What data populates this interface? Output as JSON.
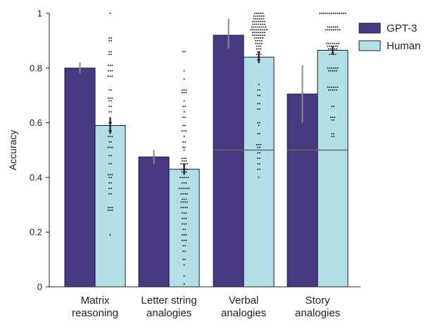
{
  "chart_data": {
    "type": "bar",
    "ylabel": "Accuracy",
    "ylim": [
      0,
      1
    ],
    "yticks": [
      0,
      0.2,
      0.4,
      0.6,
      0.8,
      1
    ],
    "ytick_labels": [
      "0",
      "0.2",
      "0.4",
      "0.6",
      "0.8",
      "1"
    ],
    "categories": [
      [
        "Matrix",
        "reasoning"
      ],
      [
        "Letter string",
        "analogies"
      ],
      [
        "Verbal",
        "analogies"
      ],
      [
        "Story",
        "analogies"
      ]
    ],
    "series": [
      {
        "name": "GPT-3",
        "color": "#473a80",
        "values": [
          0.8,
          0.475,
          0.92,
          0.705
        ],
        "errors": [
          [
            0.78,
            0.82
          ],
          [
            0.45,
            0.5
          ],
          [
            0.87,
            0.98
          ],
          [
            0.6,
            0.81
          ]
        ]
      },
      {
        "name": "Human",
        "color": "#b3e0e6",
        "values": [
          0.59,
          0.43,
          0.84,
          0.865
        ],
        "errors": [
          [
            0.56,
            0.62
          ],
          [
            0.41,
            0.45
          ],
          [
            0.82,
            0.86
          ],
          [
            0.85,
            0.88
          ]
        ]
      }
    ],
    "chance_lines": [
      null,
      null,
      0.5,
      0.5
    ],
    "human_points": [
      [
        [
          1.0,
          1
        ],
        [
          0.91,
          2
        ],
        [
          0.9,
          2
        ],
        [
          0.86,
          2
        ],
        [
          0.85,
          2
        ],
        [
          0.81,
          3
        ],
        [
          0.79,
          3
        ],
        [
          0.77,
          3
        ],
        [
          0.72,
          2
        ],
        [
          0.69,
          3
        ],
        [
          0.68,
          2
        ],
        [
          0.66,
          2
        ],
        [
          0.64,
          2
        ],
        [
          0.6,
          2
        ],
        [
          0.57,
          2
        ],
        [
          0.55,
          3
        ],
        [
          0.53,
          2
        ],
        [
          0.51,
          3
        ],
        [
          0.48,
          2
        ],
        [
          0.45,
          2
        ],
        [
          0.41,
          3
        ],
        [
          0.4,
          2
        ],
        [
          0.38,
          2
        ],
        [
          0.36,
          2
        ],
        [
          0.34,
          2
        ],
        [
          0.29,
          3
        ],
        [
          0.28,
          3
        ],
        [
          0.19,
          1
        ]
      ],
      [
        [
          0.86,
          2
        ],
        [
          0.79,
          1
        ],
        [
          0.76,
          1
        ],
        [
          0.72,
          3
        ],
        [
          0.71,
          3
        ],
        [
          0.68,
          1
        ],
        [
          0.66,
          2
        ],
        [
          0.64,
          1
        ],
        [
          0.62,
          2
        ],
        [
          0.59,
          2
        ],
        [
          0.57,
          3
        ],
        [
          0.55,
          1
        ],
        [
          0.53,
          2
        ],
        [
          0.51,
          2
        ],
        [
          0.5,
          1
        ],
        [
          0.47,
          3
        ],
        [
          0.46,
          3
        ],
        [
          0.45,
          4
        ],
        [
          0.43,
          4
        ],
        [
          0.42,
          3
        ],
        [
          0.4,
          5
        ],
        [
          0.38,
          3
        ],
        [
          0.36,
          6
        ],
        [
          0.34,
          4
        ],
        [
          0.32,
          3
        ],
        [
          0.31,
          4
        ],
        [
          0.29,
          4
        ],
        [
          0.27,
          3
        ],
        [
          0.25,
          3
        ],
        [
          0.23,
          3
        ],
        [
          0.21,
          2
        ],
        [
          0.19,
          3
        ],
        [
          0.17,
          3
        ],
        [
          0.15,
          2
        ],
        [
          0.13,
          2
        ],
        [
          0.1,
          2
        ],
        [
          0.08,
          1
        ],
        [
          0.04,
          1
        ],
        [
          0.01,
          1
        ]
      ],
      [
        [
          1.0,
          5
        ],
        [
          0.99,
          6
        ],
        [
          0.98,
          6
        ],
        [
          0.97,
          7
        ],
        [
          0.96,
          7
        ],
        [
          0.95,
          8
        ],
        [
          0.94,
          9
        ],
        [
          0.93,
          7
        ],
        [
          0.92,
          7
        ],
        [
          0.91,
          5
        ],
        [
          0.9,
          4
        ],
        [
          0.89,
          4
        ],
        [
          0.88,
          3
        ],
        [
          0.87,
          3
        ],
        [
          0.86,
          2
        ],
        [
          0.85,
          3
        ],
        [
          0.83,
          2
        ],
        [
          0.82,
          1
        ],
        [
          0.74,
          1
        ],
        [
          0.72,
          2
        ],
        [
          0.7,
          2
        ],
        [
          0.67,
          2
        ],
        [
          0.65,
          2
        ],
        [
          0.6,
          2
        ],
        [
          0.59,
          1
        ],
        [
          0.56,
          2
        ],
        [
          0.52,
          3
        ],
        [
          0.51,
          2
        ],
        [
          0.49,
          2
        ],
        [
          0.47,
          2
        ],
        [
          0.45,
          2
        ],
        [
          0.43,
          2
        ],
        [
          0.4,
          1
        ]
      ],
      [
        [
          1.0,
          14
        ],
        [
          0.95,
          6
        ],
        [
          0.94,
          8
        ],
        [
          0.89,
          7
        ],
        [
          0.88,
          6
        ],
        [
          0.87,
          5
        ],
        [
          0.85,
          4
        ],
        [
          0.8,
          6
        ],
        [
          0.79,
          5
        ],
        [
          0.73,
          6
        ],
        [
          0.72,
          5
        ],
        [
          0.66,
          2
        ],
        [
          0.62,
          3
        ],
        [
          0.61,
          2
        ],
        [
          0.56,
          2
        ],
        [
          0.55,
          2
        ]
      ]
    ],
    "legend": {
      "placement": "top-right",
      "entries": [
        "GPT-3",
        "Human"
      ]
    },
    "grid": false
  }
}
